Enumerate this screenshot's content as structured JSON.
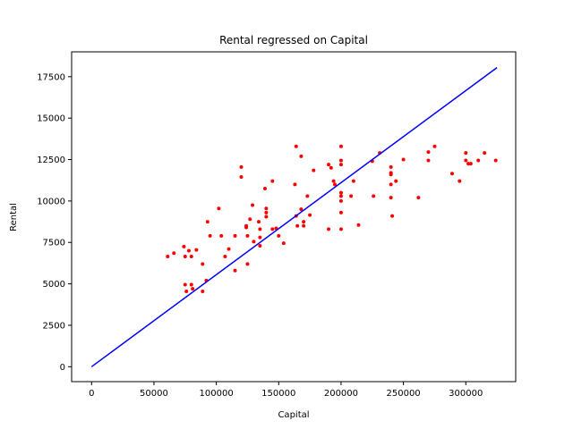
{
  "chart_data": {
    "type": "scatter",
    "title": "Rental regressed on Capital",
    "xlabel": "Capital",
    "ylabel": "Rental",
    "xlim": [
      -16000,
      340000
    ],
    "ylim": [
      -900,
      19000
    ],
    "xticks": [
      0,
      50000,
      100000,
      150000,
      200000,
      250000,
      300000
    ],
    "yticks": [
      0,
      2500,
      5000,
      7500,
      10000,
      12500,
      15000,
      17500
    ],
    "grid": false,
    "legend": "none",
    "series": [
      {
        "type": "scatter",
        "color": "#ff0000",
        "points": [
          [
            61000,
            6650
          ],
          [
            66000,
            6850
          ],
          [
            74000,
            7250
          ],
          [
            75000,
            6650
          ],
          [
            78000,
            7000
          ],
          [
            80000,
            6650
          ],
          [
            84000,
            7050
          ],
          [
            75000,
            4950
          ],
          [
            76000,
            4550
          ],
          [
            80000,
            4950
          ],
          [
            81000,
            4700
          ],
          [
            89000,
            4550
          ],
          [
            89000,
            6200
          ],
          [
            92000,
            5200
          ],
          [
            93000,
            8750
          ],
          [
            95000,
            7900
          ],
          [
            102000,
            9550
          ],
          [
            104000,
            7900
          ],
          [
            107000,
            6650
          ],
          [
            110000,
            7100
          ],
          [
            115000,
            7900
          ],
          [
            115000,
            5800
          ],
          [
            120000,
            12050
          ],
          [
            120000,
            11450
          ],
          [
            124000,
            8500
          ],
          [
            124000,
            8400
          ],
          [
            125000,
            7900
          ],
          [
            125000,
            6200
          ],
          [
            127000,
            8900
          ],
          [
            129000,
            9750
          ],
          [
            130000,
            7550
          ],
          [
            134000,
            8750
          ],
          [
            135000,
            7300
          ],
          [
            135000,
            8300
          ],
          [
            135000,
            7800
          ],
          [
            139000,
            10750
          ],
          [
            140000,
            9550
          ],
          [
            140000,
            9300
          ],
          [
            140000,
            9050
          ],
          [
            145000,
            11200
          ],
          [
            145000,
            8300
          ],
          [
            148000,
            8350
          ],
          [
            150000,
            7900
          ],
          [
            154000,
            7450
          ],
          [
            163000,
            11000
          ],
          [
            164000,
            13300
          ],
          [
            164000,
            9100
          ],
          [
            165000,
            8500
          ],
          [
            168000,
            12700
          ],
          [
            168000,
            9500
          ],
          [
            170000,
            8750
          ],
          [
            170000,
            8500
          ],
          [
            173000,
            10300
          ],
          [
            175000,
            9150
          ],
          [
            178000,
            11850
          ],
          [
            190000,
            12200
          ],
          [
            190000,
            8300
          ],
          [
            192000,
            12000
          ],
          [
            194000,
            11200
          ],
          [
            195000,
            11000
          ],
          [
            200000,
            13300
          ],
          [
            200000,
            12450
          ],
          [
            200000,
            12200
          ],
          [
            200000,
            10500
          ],
          [
            200000,
            10300
          ],
          [
            200000,
            10000
          ],
          [
            200000,
            9300
          ],
          [
            200000,
            8300
          ],
          [
            208000,
            10300
          ],
          [
            210000,
            11200
          ],
          [
            214000,
            8550
          ],
          [
            225000,
            12400
          ],
          [
            226000,
            10300
          ],
          [
            231000,
            12900
          ],
          [
            240000,
            12050
          ],
          [
            240000,
            11700
          ],
          [
            240000,
            11600
          ],
          [
            240000,
            11000
          ],
          [
            240000,
            10200
          ],
          [
            241000,
            9100
          ],
          [
            244000,
            11200
          ],
          [
            250000,
            12500
          ],
          [
            262000,
            10200
          ],
          [
            270000,
            12950
          ],
          [
            270000,
            12450
          ],
          [
            275000,
            13300
          ],
          [
            289000,
            11650
          ],
          [
            295000,
            11200
          ],
          [
            300000,
            12900
          ],
          [
            300000,
            12450
          ],
          [
            302000,
            12250
          ],
          [
            304000,
            12250
          ],
          [
            310000,
            12450
          ],
          [
            315000,
            12900
          ],
          [
            324000,
            12450
          ]
        ]
      },
      {
        "type": "line",
        "color": "#0000ff",
        "x": [
          0,
          325000
        ],
        "y": [
          0,
          18050
        ]
      }
    ]
  }
}
